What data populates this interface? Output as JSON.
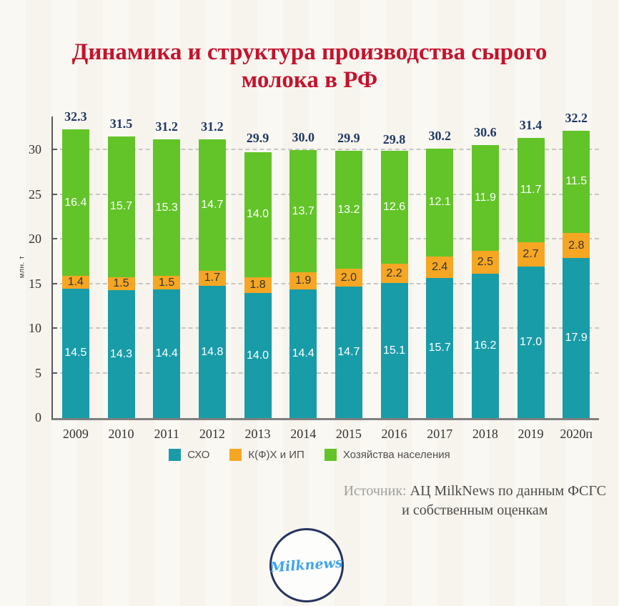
{
  "title": "Динамика и структура производства сырого\nмолока в РФ",
  "chart_data": {
    "type": "bar",
    "stacked": true,
    "title": "Динамика и структура производства сырого молока в РФ",
    "ylabel": "млн. т",
    "xlabel": "",
    "ylim": [
      0,
      33.8
    ],
    "yticks": [
      0,
      5,
      10,
      15,
      20,
      25,
      30
    ],
    "grid": "horizontal-dashed",
    "legend_position": "bottom",
    "categories": [
      "2009",
      "2010",
      "2011",
      "2012",
      "2013",
      "2014",
      "2015",
      "2016",
      "2017",
      "2018",
      "2019",
      "2020п"
    ],
    "series": [
      {
        "name": "СХО",
        "color": "#189CA8",
        "label_color": "#FFFFFF",
        "values": [
          14.5,
          14.3,
          14.4,
          14.8,
          14.0,
          14.4,
          14.7,
          15.1,
          15.7,
          16.2,
          17.0,
          17.9
        ]
      },
      {
        "name": "К(Ф)Х и ИП",
        "color": "#F5A623",
        "label_color": "#333333",
        "values": [
          1.4,
          1.5,
          1.5,
          1.7,
          1.8,
          1.9,
          2.0,
          2.2,
          2.4,
          2.5,
          2.7,
          2.8
        ]
      },
      {
        "name": "Хозяйства населения",
        "color": "#62C428",
        "label_color": "#FFFFFF",
        "values": [
          16.4,
          15.7,
          15.3,
          14.7,
          14.0,
          13.7,
          13.2,
          12.6,
          12.1,
          11.9,
          11.7,
          11.5
        ]
      }
    ],
    "totals": [
      32.3,
      31.5,
      31.2,
      31.2,
      29.9,
      30.0,
      29.9,
      29.8,
      30.2,
      30.6,
      31.4,
      32.2
    ]
  },
  "source": {
    "prefix": "Источник:",
    "line1": "АЦ MilkNews по данным ФСГС",
    "line2": "и собственным оценкам"
  },
  "logo": {
    "text": "Milknews"
  },
  "colors": {
    "title": "#C5122D",
    "total_label": "#1F3864",
    "background": "#FAF8F3"
  }
}
